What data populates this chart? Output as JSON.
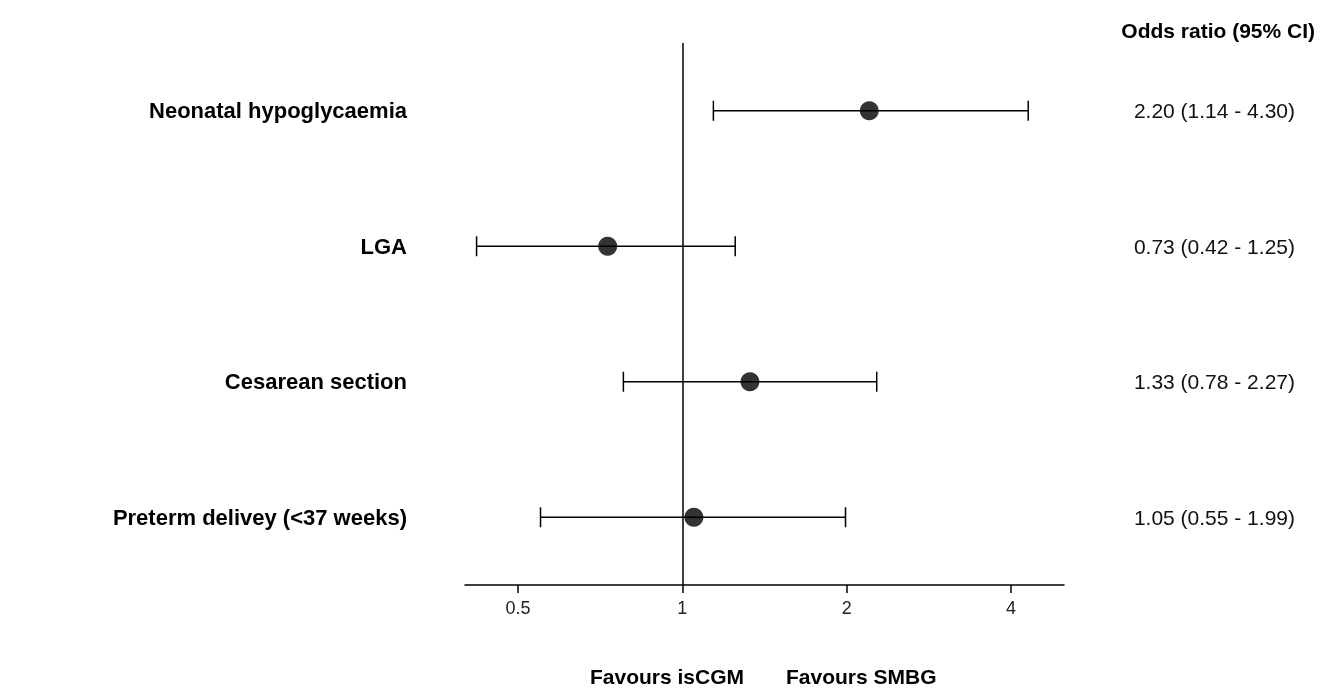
{
  "chart_data": {
    "type": "scatter",
    "orientation": "horizontal",
    "categories": [
      "Neonatal hypoglycaemia",
      "LGA",
      "Cesarean section",
      "Preterm delivey (<37 weeks)"
    ],
    "values": [
      2.2,
      0.73,
      1.33,
      1.05
    ],
    "errors": [
      [
        1.14,
        4.3
      ],
      [
        0.42,
        1.25
      ],
      [
        0.78,
        2.27
      ],
      [
        0.55,
        1.99
      ]
    ],
    "value_labels": [
      "2.20 (1.14 - 4.30)",
      "0.73 (0.42 - 1.25)",
      "1.33 (0.78 - 2.27)",
      "1.05 (0.55 - 1.99)"
    ],
    "color": "#000000",
    "marker": "circle",
    "log": "x",
    "grid": false,
    "xlim": [
      0.4,
      5
    ],
    "xticks": [
      0.5,
      1,
      2,
      4
    ],
    "ref_lines": [
      {
        "axis": "x",
        "value": 1,
        "color": "#000000",
        "line_style": "solid"
      }
    ],
    "annotations": [
      "Odds ratio (95% CI)",
      "Favours isCGM",
      "Favours SMBG"
    ]
  }
}
